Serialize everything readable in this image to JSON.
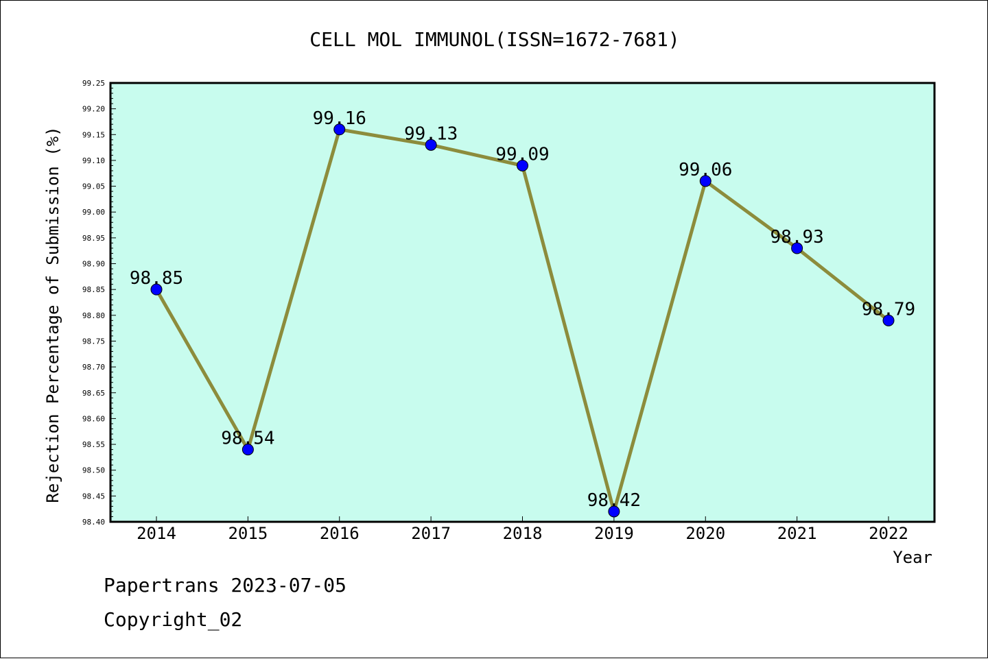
{
  "chart_data": {
    "type": "line",
    "title": "CELL MOL IMMUNOL(ISSN=1672-7681)",
    "xlabel": "Year",
    "ylabel": "Rejection Percentage of Submission (%)",
    "categories": [
      "2014",
      "2015",
      "2016",
      "2017",
      "2018",
      "2019",
      "2020",
      "2021",
      "2022"
    ],
    "values": [
      98.85,
      98.54,
      99.16,
      99.13,
      99.09,
      98.42,
      99.06,
      98.93,
      98.79
    ],
    "data_labels": [
      "98.85",
      "98.54",
      "99.16",
      "99.13",
      "99.09",
      "98.42",
      "99.06",
      "98.93",
      "98.79"
    ],
    "ylim": [
      98.4,
      99.25
    ],
    "yticks": [
      "98.40",
      "98.45",
      "98.50",
      "98.55",
      "98.60",
      "98.65",
      "98.70",
      "98.75",
      "98.80",
      "98.85",
      "98.90",
      "98.95",
      "99.00",
      "99.05",
      "99.10",
      "99.15",
      "99.20",
      "99.25"
    ],
    "grid": false,
    "colors": {
      "plot_background": "#c8fcee",
      "line": "#8c8c3c",
      "marker": "#0000ff"
    }
  },
  "footer": {
    "line1": "Papertrans 2023-07-05",
    "line2": "Copyright_02"
  }
}
